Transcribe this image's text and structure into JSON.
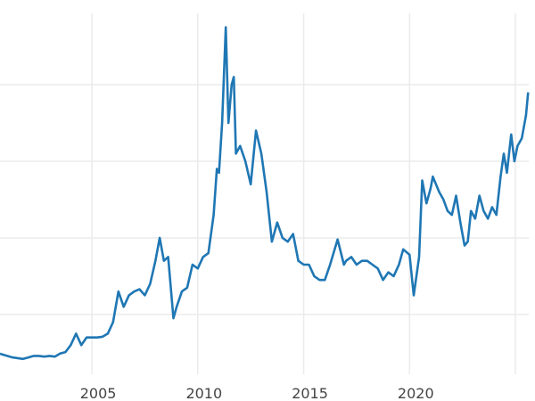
{
  "chart_data": {
    "type": "line",
    "title": "",
    "xlabel": "",
    "ylabel": "",
    "xlim": [
      2000.66,
      2025.63
    ],
    "ylim": [
      2.2,
      49.3
    ],
    "grid": true,
    "x_ticks": [
      2005,
      2010,
      2015,
      2020,
      2025
    ],
    "x_tick_labels": [
      "2005",
      "2010",
      "2015",
      "2020",
      ""
    ],
    "y_gridlines": [
      10,
      20,
      30,
      40
    ],
    "y_tick_labels_visible": false,
    "line_color": "#1f77b4",
    "series": [
      {
        "x": [
          2000.66,
          2000.75,
          2001.0,
          2001.25,
          2001.5,
          2001.75,
          2002.0,
          2002.25,
          2002.5,
          2002.75,
          2003.0,
          2003.25,
          2003.5,
          2003.75,
          2004.0,
          2004.25,
          2004.5,
          2004.75,
          2005.0,
          2005.25,
          2005.5,
          2005.75,
          2006.0,
          2006.25,
          2006.5,
          2006.75,
          2007.0,
          2007.25,
          2007.5,
          2007.75,
          2008.0,
          2008.2,
          2008.4,
          2008.6,
          2008.85,
          2009.0,
          2009.25,
          2009.5,
          2009.75,
          2010.0,
          2010.25,
          2010.5,
          2010.75,
          2010.9,
          2011.0,
          2011.15,
          2011.32,
          2011.45,
          2011.6,
          2011.7,
          2011.8,
          2012.0,
          2012.25,
          2012.5,
          2012.75,
          2013.0,
          2013.25,
          2013.5,
          2013.75,
          2014.0,
          2014.25,
          2014.5,
          2014.75,
          2015.0,
          2015.25,
          2015.5,
          2015.75,
          2016.0,
          2016.25,
          2016.6,
          2016.9,
          2017.0,
          2017.25,
          2017.5,
          2017.75,
          2018.0,
          2018.25,
          2018.5,
          2018.75,
          2019.0,
          2019.25,
          2019.5,
          2019.7,
          2020.0,
          2020.2,
          2020.45,
          2020.6,
          2020.8,
          2021.0,
          2021.1,
          2021.4,
          2021.6,
          2021.8,
          2022.0,
          2022.2,
          2022.4,
          2022.6,
          2022.75,
          2022.9,
          2023.1,
          2023.3,
          2023.5,
          2023.7,
          2023.9,
          2024.1,
          2024.3,
          2024.45,
          2024.6,
          2024.8,
          2024.95,
          2025.1,
          2025.3,
          2025.5,
          2025.6
        ],
        "values": [
          4.9,
          4.8,
          4.6,
          4.4,
          4.3,
          4.2,
          4.4,
          4.6,
          4.6,
          4.5,
          4.6,
          4.5,
          4.9,
          5.1,
          6.0,
          7.5,
          6.0,
          7.0,
          7.0,
          7.0,
          7.1,
          7.5,
          9.0,
          13.0,
          11.0,
          12.5,
          13.0,
          13.3,
          12.5,
          14.0,
          17.0,
          20.0,
          17.0,
          17.5,
          9.5,
          11.0,
          13.0,
          13.5,
          16.5,
          16.0,
          17.5,
          18.0,
          23.0,
          29.0,
          28.5,
          35.0,
          47.5,
          35.0,
          40.0,
          41.0,
          31.0,
          32.0,
          30.0,
          27.0,
          34.0,
          31.0,
          26.0,
          19.5,
          22.0,
          20.0,
          19.5,
          20.5,
          17.0,
          16.5,
          16.5,
          15.0,
          14.5,
          14.5,
          16.5,
          19.8,
          16.5,
          17.0,
          17.5,
          16.5,
          17.0,
          17.0,
          16.5,
          16.0,
          14.5,
          15.5,
          15.0,
          16.5,
          18.5,
          17.8,
          12.5,
          17.5,
          27.5,
          24.5,
          26.5,
          28.0,
          26.0,
          25.0,
          23.5,
          23.0,
          25.5,
          22.0,
          19.0,
          19.5,
          23.5,
          22.5,
          25.5,
          23.5,
          22.5,
          24.0,
          23.0,
          28.0,
          31.0,
          28.5,
          33.5,
          30.0,
          32.0,
          33.0,
          36.0,
          39.0
        ]
      }
    ]
  }
}
